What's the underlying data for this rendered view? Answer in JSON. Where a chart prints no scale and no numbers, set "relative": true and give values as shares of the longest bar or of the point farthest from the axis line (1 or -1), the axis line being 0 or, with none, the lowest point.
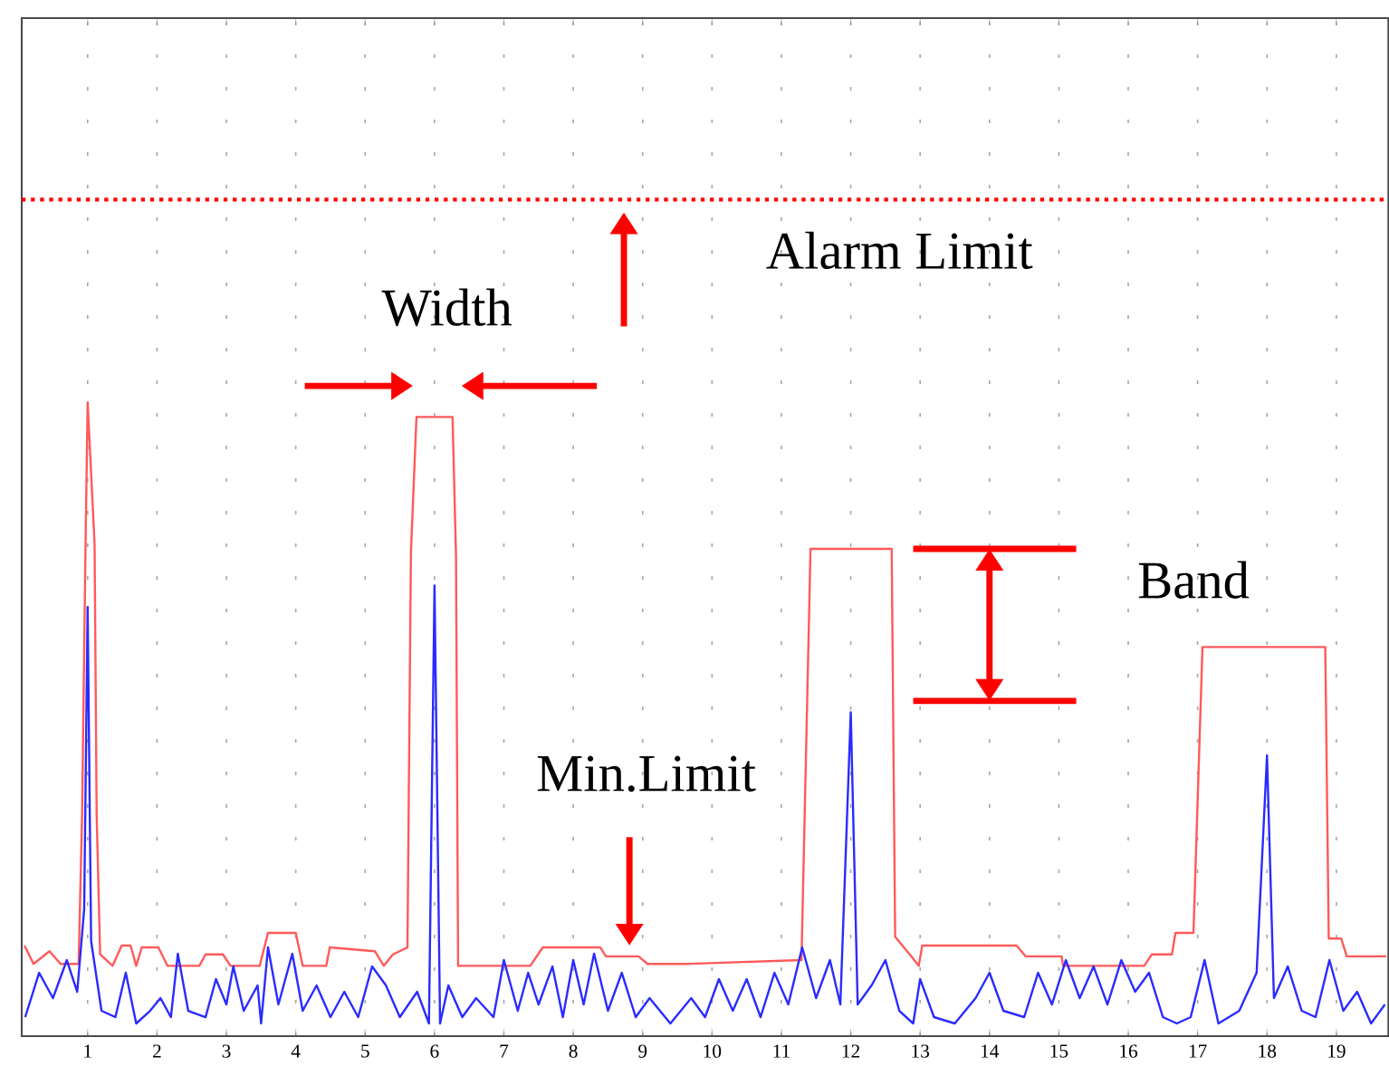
{
  "chart_data": {
    "type": "line",
    "relative": true,
    "xlim": [
      0.05,
      19.75
    ],
    "xticks": [
      1,
      2,
      3,
      4,
      5,
      6,
      7,
      8,
      9,
      10,
      11,
      12,
      13,
      14,
      15,
      16,
      17,
      18,
      19
    ],
    "grid": "x",
    "series": [
      {
        "color": "#ff5a5a",
        "x": [
          0.09,
          0.22,
          0.45,
          0.61,
          0.87,
          0.92,
          0.97,
          1.0,
          1.1,
          1.13,
          1.18,
          1.36,
          1.49,
          1.62,
          1.7,
          1.78,
          2.02,
          2.15,
          2.61,
          2.7,
          2.95,
          3.06,
          3.48,
          3.6,
          4.0,
          4.1,
          4.44,
          4.49,
          5.14,
          5.27,
          5.4,
          5.61,
          5.66,
          5.74,
          6.26,
          6.31,
          6.34,
          7.38,
          7.56,
          8.39,
          8.47,
          8.94,
          9.07,
          9.65,
          11.29,
          11.42,
          12.59,
          12.64,
          12.85,
          12.98,
          13.03,
          14.39,
          14.52,
          15.04,
          15.06,
          16.23,
          16.34,
          16.63,
          16.68,
          16.94,
          17.07,
          18.84,
          18.89,
          19.07,
          19.15,
          19.72
        ],
        "values": [
          0.143,
          0.114,
          0.134,
          0.114,
          0.114,
          0.349,
          0.777,
          1.0,
          0.777,
          0.349,
          0.129,
          0.111,
          0.143,
          0.143,
          0.111,
          0.14,
          0.14,
          0.111,
          0.111,
          0.129,
          0.129,
          0.111,
          0.111,
          0.163,
          0.163,
          0.111,
          0.111,
          0.14,
          0.134,
          0.111,
          0.129,
          0.14,
          0.763,
          0.977,
          0.977,
          0.757,
          0.111,
          0.111,
          0.14,
          0.14,
          0.126,
          0.126,
          0.114,
          0.114,
          0.12,
          0.769,
          0.769,
          0.157,
          0.129,
          0.111,
          0.143,
          0.143,
          0.126,
          0.126,
          0.111,
          0.111,
          0.129,
          0.129,
          0.163,
          0.163,
          0.614,
          0.614,
          0.154,
          0.154,
          0.126,
          0.126
        ]
      },
      {
        "color": "#2b2bff",
        "x": [
          0.1,
          0.3,
          0.5,
          0.7,
          0.85,
          0.95,
          1.0,
          1.05,
          1.2,
          1.4,
          1.55,
          1.7,
          1.9,
          2.05,
          2.2,
          2.3,
          2.45,
          2.7,
          2.85,
          3.0,
          3.1,
          3.25,
          3.45,
          3.5,
          3.6,
          3.75,
          3.95,
          4.1,
          4.3,
          4.5,
          4.7,
          4.9,
          5.1,
          5.3,
          5.5,
          5.75,
          5.92,
          6.0,
          6.08,
          6.2,
          6.4,
          6.6,
          6.85,
          7.0,
          7.2,
          7.35,
          7.5,
          7.7,
          7.85,
          8.0,
          8.15,
          8.3,
          8.5,
          8.7,
          8.9,
          9.1,
          9.4,
          9.7,
          9.9,
          10.1,
          10.3,
          10.5,
          10.7,
          10.9,
          11.1,
          11.3,
          11.5,
          11.7,
          11.85,
          12.0,
          12.1,
          12.3,
          12.5,
          12.7,
          12.9,
          13.0,
          13.2,
          13.5,
          13.8,
          14.0,
          14.2,
          14.5,
          14.7,
          14.9,
          15.1,
          15.3,
          15.5,
          15.7,
          15.9,
          16.1,
          16.3,
          16.5,
          16.7,
          16.9,
          17.1,
          17.3,
          17.6,
          17.85,
          18.0,
          18.1,
          18.3,
          18.5,
          18.7,
          18.9,
          19.1,
          19.3,
          19.5,
          19.7
        ],
        "values": [
          0.03,
          0.1,
          0.06,
          0.12,
          0.07,
          0.2,
          0.677,
          0.15,
          0.04,
          0.03,
          0.1,
          0.02,
          0.04,
          0.06,
          0.03,
          0.13,
          0.04,
          0.03,
          0.09,
          0.05,
          0.11,
          0.04,
          0.08,
          0.02,
          0.14,
          0.05,
          0.13,
          0.04,
          0.08,
          0.03,
          0.07,
          0.03,
          0.11,
          0.08,
          0.03,
          0.07,
          0.02,
          0.711,
          0.02,
          0.08,
          0.03,
          0.06,
          0.03,
          0.12,
          0.04,
          0.1,
          0.05,
          0.11,
          0.03,
          0.12,
          0.05,
          0.13,
          0.04,
          0.1,
          0.03,
          0.06,
          0.02,
          0.06,
          0.03,
          0.09,
          0.04,
          0.09,
          0.03,
          0.1,
          0.05,
          0.14,
          0.06,
          0.12,
          0.05,
          0.511,
          0.05,
          0.08,
          0.12,
          0.04,
          0.02,
          0.09,
          0.03,
          0.02,
          0.06,
          0.1,
          0.04,
          0.03,
          0.1,
          0.05,
          0.12,
          0.06,
          0.11,
          0.05,
          0.12,
          0.07,
          0.1,
          0.03,
          0.02,
          0.03,
          0.12,
          0.02,
          0.04,
          0.1,
          0.443,
          0.06,
          0.11,
          0.04,
          0.03,
          0.12,
          0.04,
          0.07,
          0.02,
          0.05
        ]
      }
    ],
    "ref_lines": [
      {
        "axis": "y",
        "value": 1.32,
        "color": "#ff0000",
        "line_style": "dotted"
      }
    ],
    "annotations": [
      "Alarm Limit",
      "Width",
      "Band",
      "Min.Limit"
    ]
  }
}
